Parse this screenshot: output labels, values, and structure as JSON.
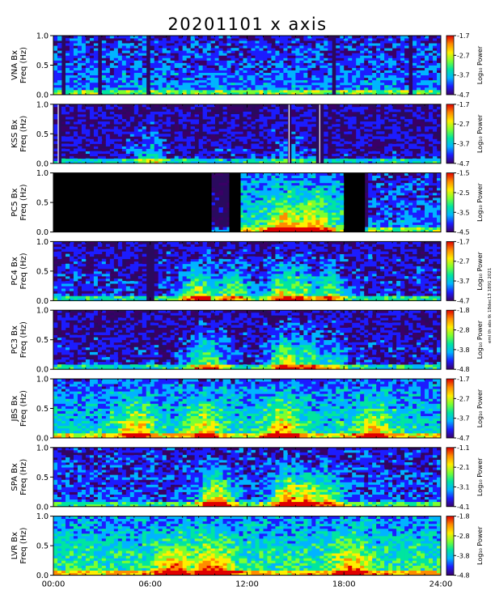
{
  "title": "20201101  x axis",
  "side_note": "eml th abs tk 18dec13 1891 2021",
  "chart_data": {
    "type": "heatmap",
    "title": "20201101  x axis",
    "x_axis": {
      "range": [
        0,
        24
      ],
      "unit": "hours",
      "ticks": [
        "00:00",
        "06:00",
        "12:00",
        "18:00",
        "24:00"
      ]
    },
    "y_axis": {
      "label": "Freq (Hz)",
      "range": [
        0,
        1.0
      ],
      "ticks": [
        "0.0",
        "0.5",
        "1.0"
      ]
    },
    "colorbar_label": "Log₁₀ Power",
    "colormap": [
      "#3a0066",
      "#1c1cff",
      "#00b4ff",
      "#00e5a0",
      "#7cff30",
      "#ffee00",
      "#ff8c00",
      "#e00000"
    ],
    "panels": [
      {
        "station": "VNA Bx",
        "cbar_ticks": [
          "-1.7",
          "-2.7",
          "-3.7",
          "-4.7"
        ],
        "cbar_range": [
          -4.7,
          -1.7
        ],
        "activity": [
          [
            0,
            24,
            0.22
          ]
        ],
        "bursts": [],
        "gaps": [],
        "dropouts": [
          0.7,
          2.8,
          5.9,
          17.4,
          22.1
        ]
      },
      {
        "station": "KSS Bx",
        "cbar_ticks": [
          "-1.7",
          "-2.7",
          "-3.7",
          "-4.7"
        ],
        "cbar_range": [
          -4.7,
          -1.7
        ],
        "activity": [
          [
            0,
            24,
            0.1
          ]
        ],
        "bursts": [
          [
            6.0,
            0.3
          ],
          [
            14.8,
            0.2
          ]
        ],
        "gaps": [],
        "dropouts": [
          0.3,
          14.6,
          16.5
        ]
      },
      {
        "station": "PC5 Bx",
        "cbar_ticks": [
          "-1.5",
          "-2.5",
          "-3.5",
          "-4.5"
        ],
        "cbar_range": [
          -4.5,
          -1.5
        ],
        "activity": [
          [
            11.5,
            18,
            0.35
          ],
          [
            19.4,
            24,
            0.22
          ]
        ],
        "bursts": [
          [
            14.5,
            0.45
          ],
          [
            16.0,
            0.4
          ]
        ],
        "gaps": [
          [
            0,
            9.8
          ],
          [
            10.9,
            11.6
          ],
          [
            18.0,
            19.3
          ]
        ],
        "dropouts": []
      },
      {
        "station": "PC4 Bx",
        "cbar_ticks": [
          "-1.7",
          "-2.7",
          "-3.7",
          "-4.7"
        ],
        "cbar_range": [
          -4.7,
          -1.7
        ],
        "activity": [
          [
            0,
            24,
            0.14
          ]
        ],
        "bursts": [
          [
            9.0,
            0.55
          ],
          [
            11.0,
            0.5
          ],
          [
            14.3,
            0.6
          ],
          [
            15.2,
            0.55
          ],
          [
            17.0,
            0.45
          ]
        ],
        "gaps": [],
        "dropouts": [
          6.0
        ]
      },
      {
        "station": "PC3 Bx",
        "cbar_ticks": [
          "-1.8",
          "-2.8",
          "-3.8",
          "-4.8"
        ],
        "cbar_range": [
          -4.8,
          -1.8
        ],
        "activity": [
          [
            0,
            24,
            0.12
          ]
        ],
        "bursts": [
          [
            9.6,
            0.55
          ],
          [
            14.4,
            0.65
          ],
          [
            15.7,
            0.5
          ],
          [
            17.2,
            0.35
          ]
        ],
        "gaps": [],
        "dropouts": []
      },
      {
        "station": "JBS Bx",
        "cbar_ticks": [
          "-1.7",
          "-2.7",
          "-3.7",
          "-4.7"
        ],
        "cbar_range": [
          -4.7,
          -1.7
        ],
        "activity": [
          [
            0,
            24,
            0.32
          ]
        ],
        "bursts": [
          [
            5.1,
            0.5
          ],
          [
            9.3,
            0.4
          ],
          [
            14.2,
            0.55
          ],
          [
            19.8,
            0.45
          ]
        ],
        "gaps": [],
        "dropouts": []
      },
      {
        "station": "SPA Bx",
        "cbar_ticks": [
          "-1.1",
          "-2.1",
          "-3.1",
          "-4.1"
        ],
        "cbar_range": [
          -4.1,
          -1.1
        ],
        "activity": [
          [
            0,
            24,
            0.18
          ]
        ],
        "bursts": [
          [
            10.1,
            0.65
          ],
          [
            14.6,
            0.75
          ],
          [
            15.6,
            0.7
          ],
          [
            16.8,
            0.5
          ]
        ],
        "gaps": [],
        "dropouts": []
      },
      {
        "station": "LVR Bx",
        "cbar_ticks": [
          "-1.8",
          "-2.8",
          "-3.8",
          "-4.8"
        ],
        "cbar_range": [
          -4.8,
          -1.8
        ],
        "activity": [
          [
            0,
            24,
            0.38
          ]
        ],
        "bursts": [
          [
            7.5,
            0.45
          ],
          [
            9.9,
            0.55
          ],
          [
            18.5,
            0.45
          ]
        ],
        "gaps": [],
        "dropouts": []
      }
    ]
  }
}
